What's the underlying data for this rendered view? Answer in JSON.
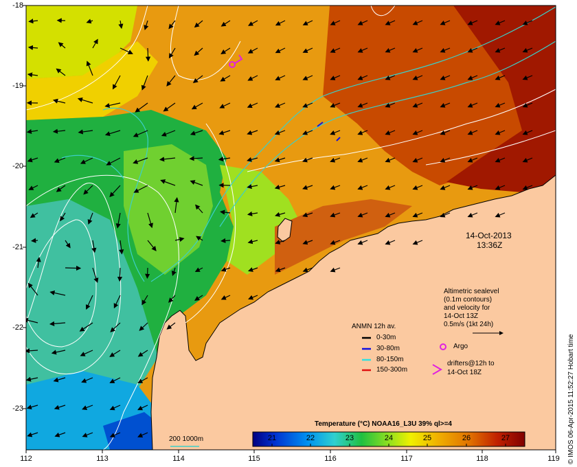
{
  "map": {
    "date": "14-Oct-2013",
    "time": "13:36Z",
    "lat_ticks": [
      "-18",
      "-19",
      "-20",
      "-21",
      "-22",
      "-23"
    ],
    "lon_ticks": [
      "112",
      "113",
      "114",
      "115",
      "116",
      "117",
      "118",
      "119"
    ],
    "colors": {
      "land": "#fbc9a0",
      "contour": "#ffffff",
      "isobath": "#3ccfc8",
      "arrow": "#000000",
      "argo": "#e020e0"
    }
  },
  "altimetry": {
    "line1": "Altimetric sealevel",
    "line2": "(0.1m contours)",
    "line3": "and velocity for",
    "line4": "14-Oct 13Z",
    "scale": "0.5m/s (1kt 24h)"
  },
  "argo": {
    "label": "Argo"
  },
  "drifters": {
    "line1": "drifters@12h to",
    "line2": "14-Oct 18Z"
  },
  "anmn": {
    "title": "ANMN 12h av.",
    "items": [
      {
        "label": "0-30m",
        "color": "#000000"
      },
      {
        "label": "30-80m",
        "color": "#1010e0"
      },
      {
        "label": "80-150m",
        "color": "#30e0e0"
      },
      {
        "label": "150-300m",
        "color": "#e01010"
      }
    ]
  },
  "isobath_legend": {
    "label": "200  1000m"
  },
  "colorbar": {
    "title": "Temperature (°C) NOAA16_L3U 39% ql>=4",
    "ticks": [
      "21",
      "22",
      "23",
      "24",
      "25",
      "26",
      "27"
    ],
    "min": 20.5,
    "max": 27.5,
    "colors": [
      "#000080",
      "#0030d0",
      "#0090f0",
      "#30d0d0",
      "#20c040",
      "#90e020",
      "#f0f000",
      "#f0b000",
      "#e07000",
      "#c02000",
      "#800000"
    ]
  },
  "credit": "© IMOS 06-Apr-2015 11:52:27 Hobart time"
}
